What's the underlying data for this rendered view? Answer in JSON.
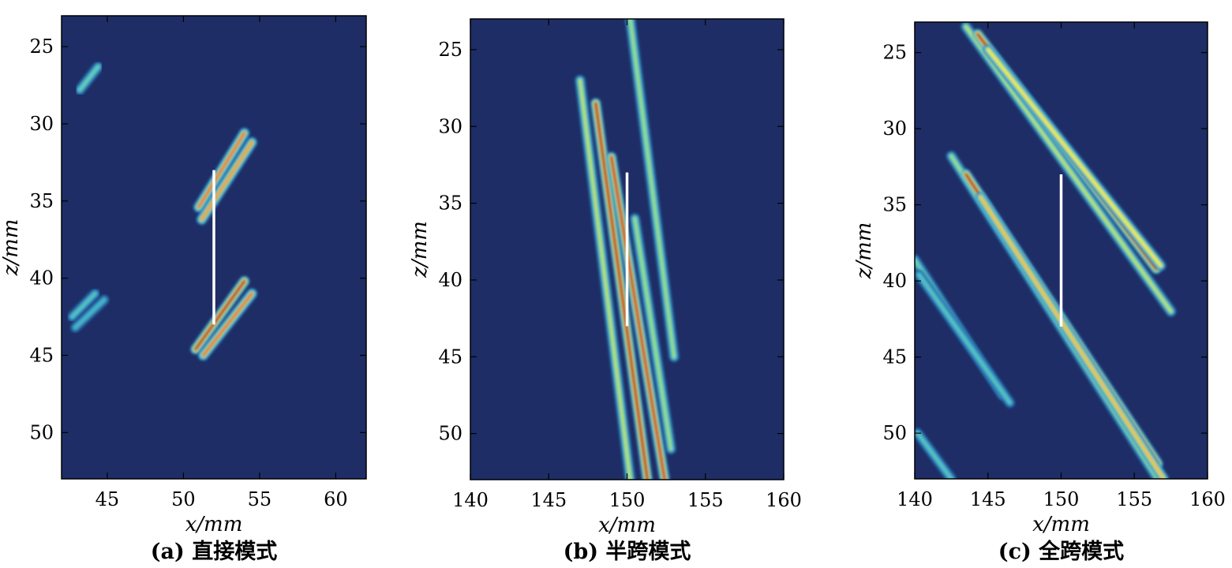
{
  "chart_data": [
    {
      "type": "heatmap",
      "caption": "(a) 直接模式",
      "xlabel": "x/mm",
      "ylabel": "z/mm",
      "xlim": [
        42,
        62
      ],
      "ylim": [
        23,
        53
      ],
      "y_inverted": true,
      "xticks": [
        45,
        50,
        55,
        60
      ],
      "yticks": [
        25,
        30,
        35,
        40,
        45,
        50
      ],
      "colormap": "jet",
      "background_color": "#1e2d66",
      "defect_line": {
        "x": 52,
        "z1": 33,
        "z2": 43,
        "color": "#ffffff"
      },
      "streaks": [
        {
          "x1": 51.0,
          "z1": 35.4,
          "x2": 54.0,
          "z2": 30.6,
          "intensity": 0.85
        },
        {
          "x1": 51.2,
          "z1": 36.2,
          "x2": 54.5,
          "z2": 31.2,
          "intensity": 0.8
        },
        {
          "x1": 50.8,
          "z1": 44.6,
          "x2": 54.0,
          "z2": 40.2,
          "intensity": 1.0
        },
        {
          "x1": 51.3,
          "z1": 45.0,
          "x2": 54.5,
          "z2": 41.0,
          "intensity": 0.85
        },
        {
          "x1": 43.2,
          "z1": 27.8,
          "x2": 44.4,
          "z2": 26.3,
          "intensity": 0.45
        },
        {
          "x1": 42.7,
          "z1": 42.5,
          "x2": 44.2,
          "z2": 41.0,
          "intensity": 0.4
        },
        {
          "x1": 42.9,
          "z1": 43.2,
          "x2": 44.8,
          "z2": 41.4,
          "intensity": 0.35
        }
      ]
    },
    {
      "type": "heatmap",
      "caption": "(b) 半跨模式",
      "xlabel": "x/mm",
      "ylabel": "z/mm",
      "xlim": [
        140,
        160
      ],
      "ylim": [
        23,
        53
      ],
      "y_inverted": true,
      "xticks": [
        140,
        145,
        150,
        155,
        160
      ],
      "yticks": [
        25,
        30,
        35,
        40,
        45,
        50
      ],
      "colormap": "jet",
      "background_color": "#1e2d66",
      "defect_line": {
        "x": 150,
        "z1": 33,
        "z2": 43,
        "color": "#ffffff"
      },
      "streaks": [
        {
          "x1": 147.0,
          "z1": 27.0,
          "x2": 150.2,
          "z2": 53,
          "intensity": 0.6
        },
        {
          "x1": 148.0,
          "z1": 28.5,
          "x2": 151.3,
          "z2": 53,
          "intensity": 1.0
        },
        {
          "x1": 149.0,
          "z1": 32.0,
          "x2": 152.4,
          "z2": 53,
          "intensity": 0.95
        },
        {
          "x1": 150.5,
          "z1": 36.0,
          "x2": 152.8,
          "z2": 51.0,
          "intensity": 0.55
        },
        {
          "x1": 150.2,
          "z1": 23.0,
          "x2": 153.0,
          "z2": 45.0,
          "intensity": 0.55
        }
      ]
    },
    {
      "type": "heatmap",
      "caption": "(c) 全跨模式",
      "xlabel": "x/mm",
      "ylabel": "z/mm",
      "xlim": [
        140,
        160
      ],
      "ylim": [
        23,
        53
      ],
      "y_inverted": true,
      "xticks": [
        140,
        145,
        150,
        155,
        160
      ],
      "yticks": [
        25,
        30,
        35,
        40,
        45,
        50
      ],
      "colormap": "jet",
      "background_color": "#1e2d66",
      "defect_line": {
        "x": 150,
        "z1": 33,
        "z2": 43,
        "color": "#ffffff"
      },
      "streaks": [
        {
          "x1": 143.5,
          "z1": 23.3,
          "x2": 157.5,
          "z2": 42.0,
          "intensity": 0.6
        },
        {
          "x1": 144.3,
          "z1": 23.8,
          "x2": 156.5,
          "z2": 39.2,
          "intensity": 1.0
        },
        {
          "x1": 145.0,
          "z1": 24.8,
          "x2": 156.8,
          "z2": 39.0,
          "intensity": 0.7
        },
        {
          "x1": 142.5,
          "z1": 31.8,
          "x2": 156.6,
          "z2": 53.0,
          "intensity": 0.55
        },
        {
          "x1": 143.5,
          "z1": 33.0,
          "x2": 156.6,
          "z2": 52.0,
          "intensity": 1.0
        },
        {
          "x1": 144.5,
          "z1": 34.5,
          "x2": 157.0,
          "z2": 53.0,
          "intensity": 0.75
        },
        {
          "x1": 140.0,
          "z1": 38.6,
          "x2": 146.0,
          "z2": 47.5,
          "intensity": 0.45
        },
        {
          "x1": 140.3,
          "z1": 39.6,
          "x2": 146.5,
          "z2": 48.0,
          "intensity": 0.4
        },
        {
          "x1": 140.2,
          "z1": 50.0,
          "x2": 142.5,
          "z2": 53.0,
          "intensity": 0.4
        }
      ]
    }
  ]
}
